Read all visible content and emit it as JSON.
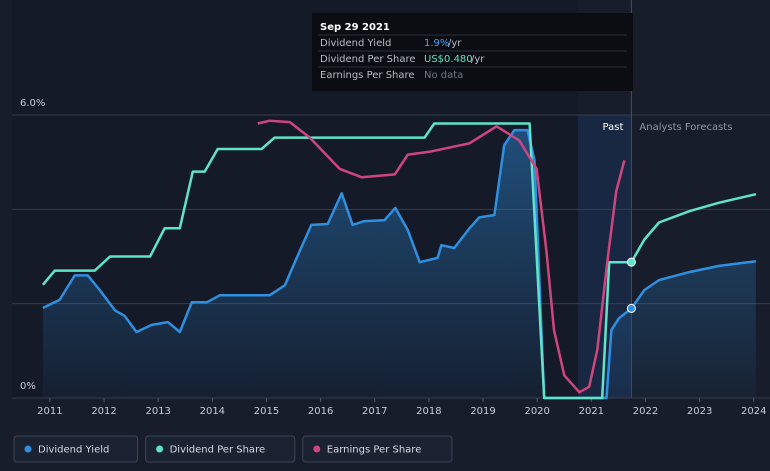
{
  "chart_data": {
    "type": "line",
    "xlim": [
      2010.3,
      2024.3
    ],
    "xticks": [
      2011,
      2012,
      2013,
      2014,
      2015,
      2016,
      2017,
      2018,
      2019,
      2020,
      2021,
      2022,
      2023,
      2024
    ],
    "ylim": [
      0,
      6
    ],
    "yticks": [
      {
        "value": 0,
        "label": "0%"
      },
      {
        "value": 6,
        "label": "6.0%"
      }
    ],
    "ygrid": [
      0,
      2,
      4,
      6
    ],
    "y2lim": [
      0,
      1
    ],
    "highlight_range": [
      2020.75,
      2021.74
    ],
    "region_labels": [
      "Past",
      "Analysts Forecasts"
    ],
    "series": [
      {
        "name": "Dividend Yield",
        "color": "#2f8fe0",
        "area": true,
        "x": [
          2010.87,
          2011.18,
          2011.46,
          2011.7,
          2011.92,
          2012.2,
          2012.38,
          2012.6,
          2012.88,
          2013.18,
          2013.4,
          2013.62,
          2013.9,
          2014.14,
          2015.06,
          2015.34,
          2015.58,
          2015.83,
          2016.13,
          2016.39,
          2016.59,
          2016.81,
          2017.18,
          2017.38,
          2017.61,
          2017.83,
          2018.16,
          2018.23,
          2018.47,
          2018.75,
          2018.93,
          2019.21,
          2019.39,
          2019.58,
          2019.82,
          2019.95,
          2020.13,
          2021.15,
          2021.28,
          2021.37,
          2021.51,
          2021.74,
          2021.98,
          2022.25,
          2022.81,
          2023.36,
          2024.04
        ],
        "values": [
          1.91,
          2.08,
          2.6,
          2.6,
          2.29,
          1.86,
          1.74,
          1.4,
          1.55,
          1.61,
          1.4,
          2.03,
          2.03,
          2.18,
          2.18,
          2.39,
          3.03,
          3.67,
          3.69,
          4.34,
          3.67,
          3.75,
          3.77,
          4.03,
          3.56,
          2.88,
          2.97,
          3.24,
          3.18,
          3.6,
          3.83,
          3.88,
          5.36,
          5.68,
          5.68,
          5.04,
          0,
          0,
          0,
          1.44,
          1.69,
          1.9,
          2.29,
          2.5,
          2.67,
          2.8,
          2.9
        ],
        "marker_index": 41
      },
      {
        "name": "Dividend Per Share",
        "color": "#5fe3c9",
        "axis": "y2",
        "x": [
          2010.87,
          2011.09,
          2011.83,
          2012.11,
          2012.85,
          2013.12,
          2013.4,
          2013.64,
          2013.86,
          2014.1,
          2014.91,
          2015.15,
          2017.92,
          2018.1,
          2019.86,
          2020.13,
          2021.2,
          2021.33,
          2021.74,
          2021.98,
          2022.25,
          2022.81,
          2023.36,
          2024.04
        ],
        "values": [
          0.4,
          0.45,
          0.45,
          0.5,
          0.5,
          0.6,
          0.6,
          0.8,
          0.8,
          0.88,
          0.88,
          0.92,
          0.92,
          0.97,
          0.97,
          0,
          0,
          0.48,
          0.48,
          0.56,
          0.62,
          0.66,
          0.69,
          0.72
        ],
        "marker_index": 18
      },
      {
        "name": "Earnings Per Share",
        "color": "#d0457f",
        "axis": "y2",
        "x": [
          2014.84,
          2015.06,
          2015.43,
          2015.8,
          2016.35,
          2016.76,
          2017.37,
          2017.61,
          2018.01,
          2018.75,
          2019.25,
          2019.67,
          2019.99,
          2020.17,
          2020.31,
          2020.5,
          2020.78,
          2020.96,
          2021.11,
          2021.3,
          2021.46,
          2021.61
        ],
        "values": [
          0.97,
          0.98,
          0.975,
          0.92,
          0.81,
          0.78,
          0.79,
          0.86,
          0.87,
          0.9,
          0.96,
          0.91,
          0.81,
          0.52,
          0.24,
          0.08,
          0.02,
          0.04,
          0.17,
          0.49,
          0.73,
          0.84
        ]
      }
    ],
    "tooltip": {
      "date": "Sep 29 2021",
      "rows": [
        {
          "label": "Dividend Yield",
          "value": "1.9%",
          "unit": "/yr"
        },
        {
          "label": "Dividend Per Share",
          "value": "US$0.480",
          "unit": "/yr"
        },
        {
          "label": "Earnings Per Share",
          "value": "No data"
        }
      ]
    }
  }
}
